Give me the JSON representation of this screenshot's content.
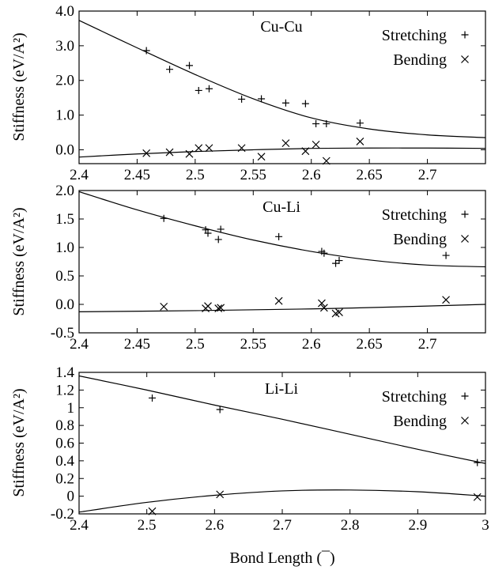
{
  "chart_data": [
    {
      "type": "scatter",
      "title": "Cu-Cu",
      "xlabel": "",
      "ylabel": "Stiffness (eV/A²)",
      "xlim": [
        2.4,
        2.75
      ],
      "ylim": [
        -0.4,
        4.0
      ],
      "xticks": [
        2.4,
        2.45,
        2.5,
        2.55,
        2.6,
        2.65,
        2.7
      ],
      "xtick_labels": [
        "2.4",
        "2.45",
        "2.5",
        "2.55",
        "2.6",
        "2.65",
        "2.7"
      ],
      "yticks": [
        0,
        1,
        2,
        3,
        4
      ],
      "ytick_labels": [
        "0.0",
        "1.0",
        "2.0",
        "3.0",
        "4.0"
      ],
      "legend_position": "top-right",
      "series": [
        {
          "name": "Stretching",
          "marker": "plus",
          "points": [
            [
              2.458,
              2.86
            ],
            [
              2.478,
              2.32
            ],
            [
              2.495,
              2.43
            ],
            [
              2.503,
              1.71
            ],
            [
              2.512,
              1.76
            ],
            [
              2.54,
              1.46
            ],
            [
              2.557,
              1.47
            ],
            [
              2.578,
              1.35
            ],
            [
              2.595,
              1.33
            ],
            [
              2.604,
              0.75
            ],
            [
              2.613,
              0.75
            ],
            [
              2.642,
              0.77
            ]
          ],
          "fit": [
            [
              2.4,
              3.73
            ],
            [
              2.45,
              2.94
            ],
            [
              2.5,
              2.17
            ],
            [
              2.55,
              1.47
            ],
            [
              2.6,
              0.92
            ],
            [
              2.65,
              0.6
            ],
            [
              2.7,
              0.43
            ],
            [
              2.75,
              0.35
            ]
          ]
        },
        {
          "name": "Bending",
          "marker": "x",
          "points": [
            [
              2.458,
              -0.1
            ],
            [
              2.478,
              -0.07
            ],
            [
              2.495,
              -0.12
            ],
            [
              2.503,
              0.05
            ],
            [
              2.512,
              0.05
            ],
            [
              2.54,
              0.05
            ],
            [
              2.557,
              -0.2
            ],
            [
              2.578,
              0.19
            ],
            [
              2.595,
              -0.04
            ],
            [
              2.604,
              0.15
            ],
            [
              2.613,
              -0.32
            ],
            [
              2.642,
              0.24
            ]
          ],
          "fit": [
            [
              2.4,
              -0.21
            ],
            [
              2.45,
              -0.12
            ],
            [
              2.5,
              -0.05
            ],
            [
              2.55,
              0.0
            ],
            [
              2.6,
              0.04
            ],
            [
              2.65,
              0.05
            ],
            [
              2.7,
              0.05
            ],
            [
              2.75,
              0.04
            ]
          ]
        }
      ]
    },
    {
      "type": "scatter",
      "title": "Cu-Li",
      "xlabel": "",
      "ylabel": "Stiffness (eV/A²)",
      "xlim": [
        2.4,
        2.75
      ],
      "ylim": [
        -0.5,
        2.0
      ],
      "xticks": [
        2.4,
        2.45,
        2.5,
        2.55,
        2.6,
        2.65,
        2.7
      ],
      "xtick_labels": [
        "2.4",
        "2.45",
        "2.5",
        "2.55",
        "2.6",
        "2.65",
        "2.7"
      ],
      "yticks": [
        -0.5,
        0,
        0.5,
        1.0,
        1.5,
        2.0
      ],
      "ytick_labels": [
        "-0.5",
        "0.0",
        "0.5",
        "1.0",
        "1.5",
        "2.0"
      ],
      "legend_position": "top-right",
      "series": [
        {
          "name": "Stretching",
          "marker": "plus",
          "points": [
            [
              2.473,
              1.51
            ],
            [
              2.509,
              1.31
            ],
            [
              2.511,
              1.25
            ],
            [
              2.52,
              1.14
            ],
            [
              2.522,
              1.32
            ],
            [
              2.572,
              1.19
            ],
            [
              2.609,
              0.93
            ],
            [
              2.611,
              0.9
            ],
            [
              2.621,
              0.72
            ],
            [
              2.624,
              0.77
            ],
            [
              2.716,
              0.86
            ]
          ],
          "fit": [
            [
              2.4,
              1.98
            ],
            [
              2.45,
              1.66
            ],
            [
              2.5,
              1.38
            ],
            [
              2.55,
              1.13
            ],
            [
              2.6,
              0.93
            ],
            [
              2.65,
              0.78
            ],
            [
              2.7,
              0.69
            ],
            [
              2.75,
              0.66
            ]
          ]
        },
        {
          "name": "Bending",
          "marker": "x",
          "points": [
            [
              2.473,
              -0.04
            ],
            [
              2.509,
              -0.07
            ],
            [
              2.511,
              -0.03
            ],
            [
              2.52,
              -0.07
            ],
            [
              2.522,
              -0.06
            ],
            [
              2.572,
              0.06
            ],
            [
              2.609,
              0.02
            ],
            [
              2.611,
              -0.06
            ],
            [
              2.621,
              -0.16
            ],
            [
              2.624,
              -0.14
            ],
            [
              2.716,
              0.08
            ]
          ],
          "fit": [
            [
              2.4,
              -0.13
            ],
            [
              2.5,
              -0.11
            ],
            [
              2.6,
              -0.08
            ],
            [
              2.7,
              -0.03
            ],
            [
              2.75,
              0.0
            ]
          ]
        }
      ]
    },
    {
      "type": "scatter",
      "title": "Li-Li",
      "xlabel": "Bond Length (¯)",
      "ylabel": "Stiffness (eV/A²)",
      "xlim": [
        2.4,
        3.0
      ],
      "ylim": [
        -0.2,
        1.4
      ],
      "xticks": [
        2.4,
        2.5,
        2.6,
        2.7,
        2.8,
        2.9,
        3.0
      ],
      "xtick_labels": [
        "2.4",
        "2.5",
        "2.6",
        "2.7",
        "2.8",
        "2.9",
        "3"
      ],
      "yticks": [
        -0.2,
        0,
        0.2,
        0.4,
        0.6,
        0.8,
        1.0,
        1.2,
        1.4
      ],
      "ytick_labels": [
        "-0.2",
        "0",
        "0.2",
        "0.4",
        "0.6",
        "0.8",
        "1",
        "1.2",
        "1.4"
      ],
      "legend_position": "top-right",
      "series": [
        {
          "name": "Stretching",
          "marker": "plus",
          "points": [
            [
              2.508,
              1.11
            ],
            [
              2.608,
              0.98
            ],
            [
              2.988,
              0.38
            ]
          ],
          "fit": [
            [
              2.4,
              1.36
            ],
            [
              2.5,
              1.2
            ],
            [
              2.6,
              1.03
            ],
            [
              2.7,
              0.87
            ],
            [
              2.8,
              0.7
            ],
            [
              2.9,
              0.53
            ],
            [
              3.0,
              0.37
            ]
          ]
        },
        {
          "name": "Bending",
          "marker": "x",
          "points": [
            [
              2.508,
              -0.17
            ],
            [
              2.608,
              0.02
            ],
            [
              2.988,
              -0.01
            ]
          ],
          "fit": [
            [
              2.4,
              -0.18
            ],
            [
              2.5,
              -0.07
            ],
            [
              2.6,
              0.01
            ],
            [
              2.7,
              0.06
            ],
            [
              2.8,
              0.07
            ],
            [
              2.9,
              0.05
            ],
            [
              3.0,
              0.0
            ]
          ]
        }
      ]
    }
  ]
}
